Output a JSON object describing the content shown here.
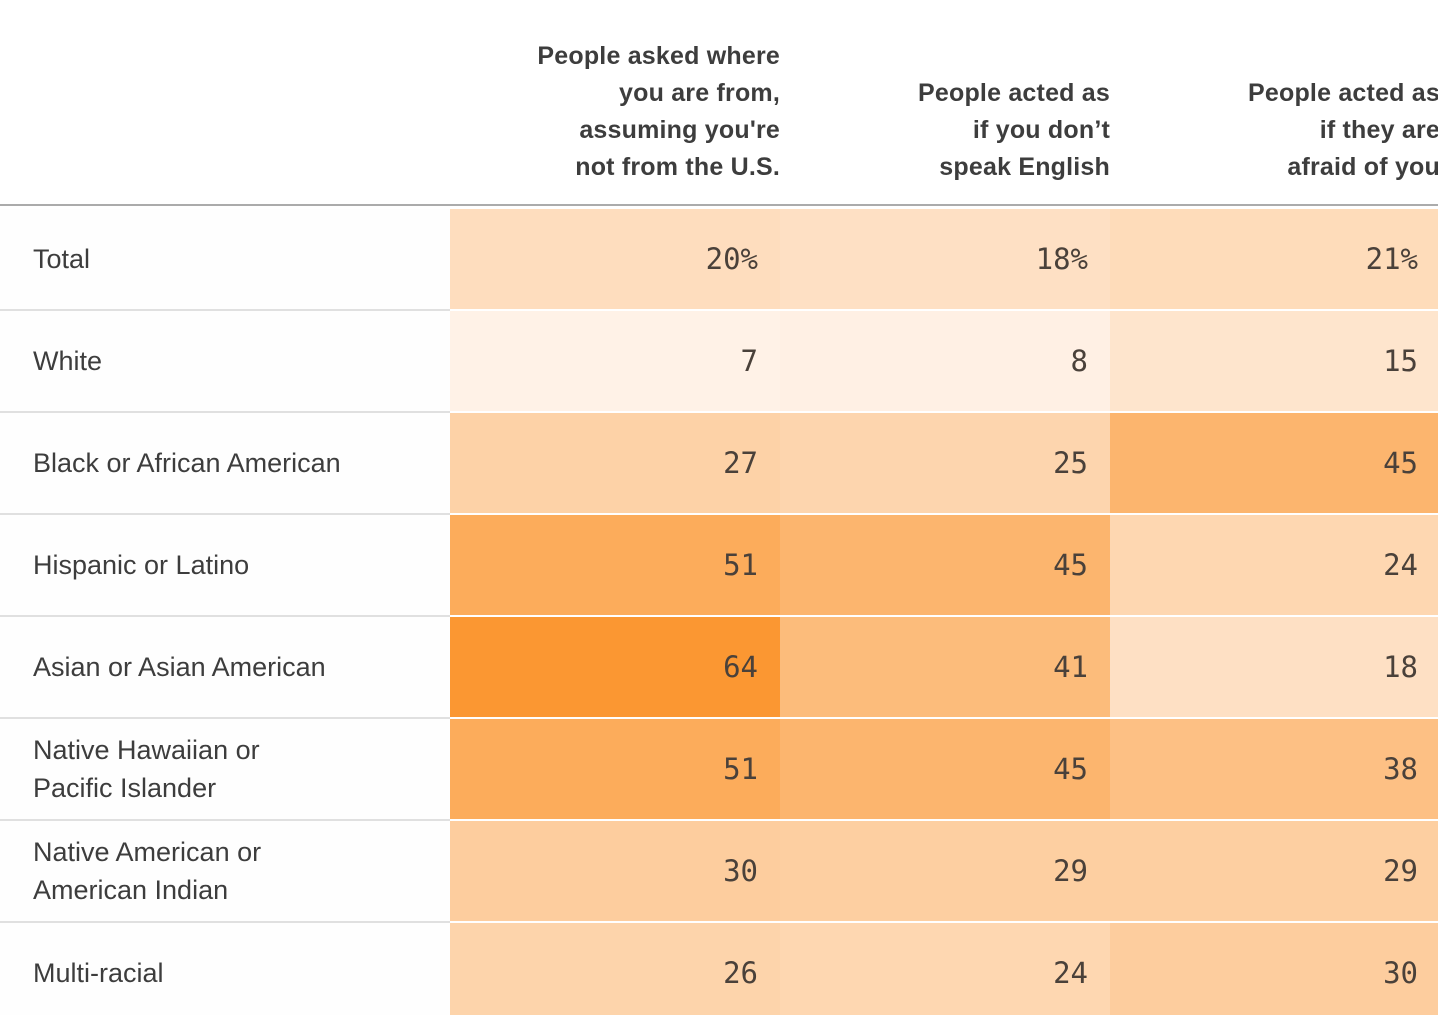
{
  "chart_data": {
    "type": "heatmap",
    "columns": [
      {
        "label": "People asked where you are from, assuming you're not from the U.S.",
        "lines": [
          "People asked where",
          "you are from,",
          "assuming you're",
          "not from the U.S."
        ]
      },
      {
        "label": "People acted as if you don’t speak English",
        "lines": [
          "People acted as",
          "if you don’t",
          "speak English"
        ]
      },
      {
        "label": "People acted as if they are afraid of you",
        "lines": [
          "People acted as",
          "if they are",
          "afraid of you"
        ]
      }
    ],
    "rows": [
      {
        "label": "Total",
        "lines": [
          "Total"
        ],
        "values": [
          20,
          18,
          21
        ],
        "display": [
          "20%",
          "18%",
          "21%"
        ]
      },
      {
        "label": "White",
        "lines": [
          "White"
        ],
        "values": [
          7,
          8,
          15
        ],
        "display": [
          "7",
          "8",
          "15"
        ]
      },
      {
        "label": "Black or African American",
        "lines": [
          "Black or African American"
        ],
        "values": [
          27,
          25,
          45
        ],
        "display": [
          "27",
          "25",
          "45"
        ]
      },
      {
        "label": "Hispanic or Latino",
        "lines": [
          "Hispanic or Latino"
        ],
        "values": [
          51,
          45,
          24
        ],
        "display": [
          "51",
          "45",
          "24"
        ]
      },
      {
        "label": "Asian or Asian American",
        "lines": [
          "Asian or Asian American"
        ],
        "values": [
          64,
          41,
          18
        ],
        "display": [
          "64",
          "41",
          "18"
        ]
      },
      {
        "label": "Native Hawaiian or Pacific Islander",
        "lines": [
          "Native Hawaiian or",
          "Pacific Islander"
        ],
        "values": [
          51,
          45,
          38
        ],
        "display": [
          "51",
          "45",
          "38"
        ]
      },
      {
        "label": "Native American or American Indian",
        "lines": [
          "Native American or",
          "American Indian"
        ],
        "values": [
          30,
          29,
          29
        ],
        "display": [
          "30",
          "29",
          "29"
        ]
      },
      {
        "label": "Multi-racial",
        "lines": [
          "Multi-racial"
        ],
        "values": [
          26,
          24,
          30
        ],
        "display": [
          "26",
          "24",
          "30"
        ]
      }
    ],
    "color_scale": {
      "min_value": 0,
      "max_value": 64,
      "min_color": "#FFFDFD",
      "max_color": "#FB9732"
    },
    "title": "",
    "legend": "none",
    "grid": "row-dividers"
  },
  "theme": {
    "background": "#ffffff",
    "header_text": "#3d3d3d",
    "label_text": "#3d3d3d",
    "value_text": "#4a413a",
    "header_rule": "#ababab",
    "row_divider": "#e0e0e0"
  }
}
